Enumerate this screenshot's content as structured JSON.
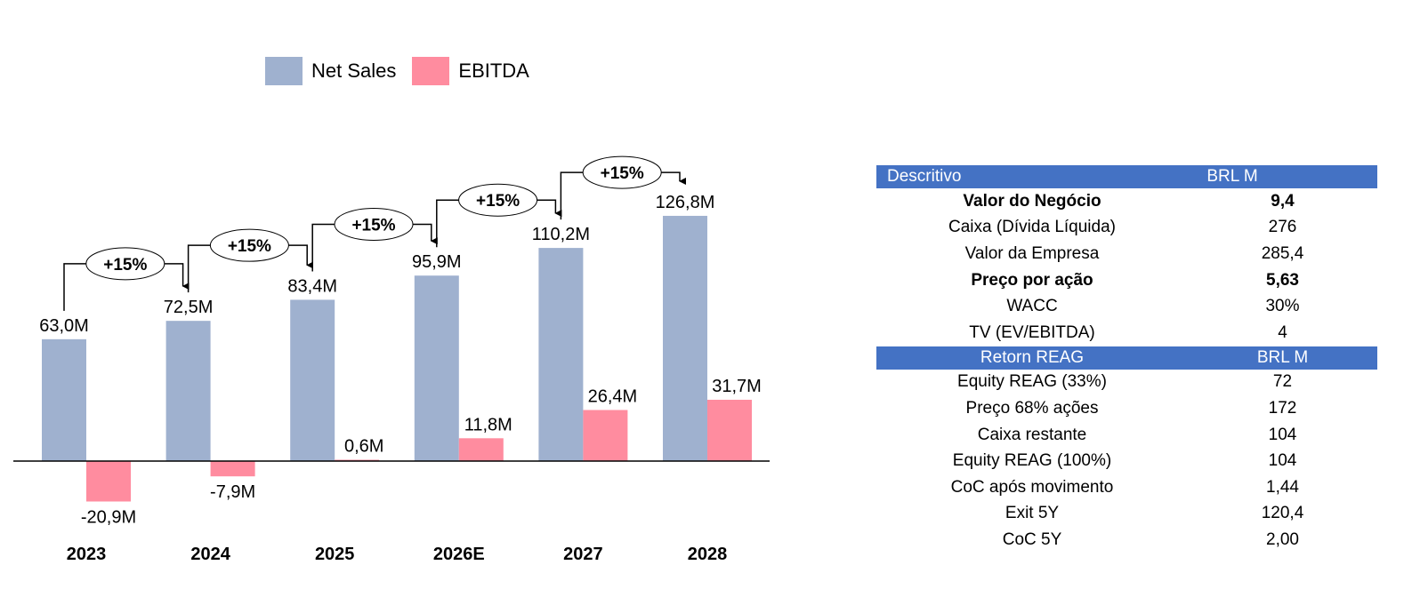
{
  "chart_data": {
    "type": "bar",
    "categories": [
      "2023",
      "2024",
      "2025",
      "2026E",
      "2027",
      "2028"
    ],
    "series": [
      {
        "name": "Net Sales",
        "color": "#9FB1CF",
        "values": [
          63.0,
          72.5,
          83.4,
          95.9,
          110.2,
          126.8
        ],
        "labels": [
          "63,0M",
          "72,5M",
          "83,4M",
          "95,9M",
          "110,2M",
          "126,8M"
        ]
      },
      {
        "name": "EBITDA",
        "color": "#FF8C9F",
        "values": [
          -20.9,
          -7.9,
          0.6,
          11.8,
          26.4,
          31.7
        ],
        "labels": [
          "-20,9M",
          "-7,9M",
          "0,6M",
          "11,8M",
          "26,4M",
          "31,7M"
        ]
      }
    ],
    "growth_annotations": [
      "+15%",
      "+15%",
      "+15%",
      "+15%",
      "+15%"
    ],
    "legend_position": "top",
    "grid": false
  },
  "table": {
    "section1": {
      "header": [
        "Descritivo",
        "BRL M"
      ],
      "rows": [
        {
          "label": "Valor do Negócio",
          "value": "9,4",
          "bold": true
        },
        {
          "label": "Caixa (Dívida Líquida)",
          "value": "276"
        },
        {
          "label": "Valor da Empresa",
          "value": "285,4"
        },
        {
          "label": "Preço por ação",
          "value": "5,63",
          "bold": true
        },
        {
          "label": "WACC",
          "value": "30%"
        },
        {
          "label": "TV (EV/EBITDA)",
          "value": "4"
        }
      ]
    },
    "section2": {
      "header": [
        "Retorn REAG",
        "BRL M"
      ],
      "rows": [
        {
          "label": "Equity REAG (33%)",
          "value": "72"
        },
        {
          "label": "Preço 68% ações",
          "value": "172"
        },
        {
          "label": "Caixa restante",
          "value": "104"
        },
        {
          "label": "Equity REAG (100%)",
          "value": "104"
        },
        {
          "label": "CoC após movimento",
          "value": "1,44"
        },
        {
          "label": "Exit 5Y",
          "value": "120,4"
        },
        {
          "label": "CoC 5Y",
          "value": "2,00"
        }
      ]
    }
  }
}
